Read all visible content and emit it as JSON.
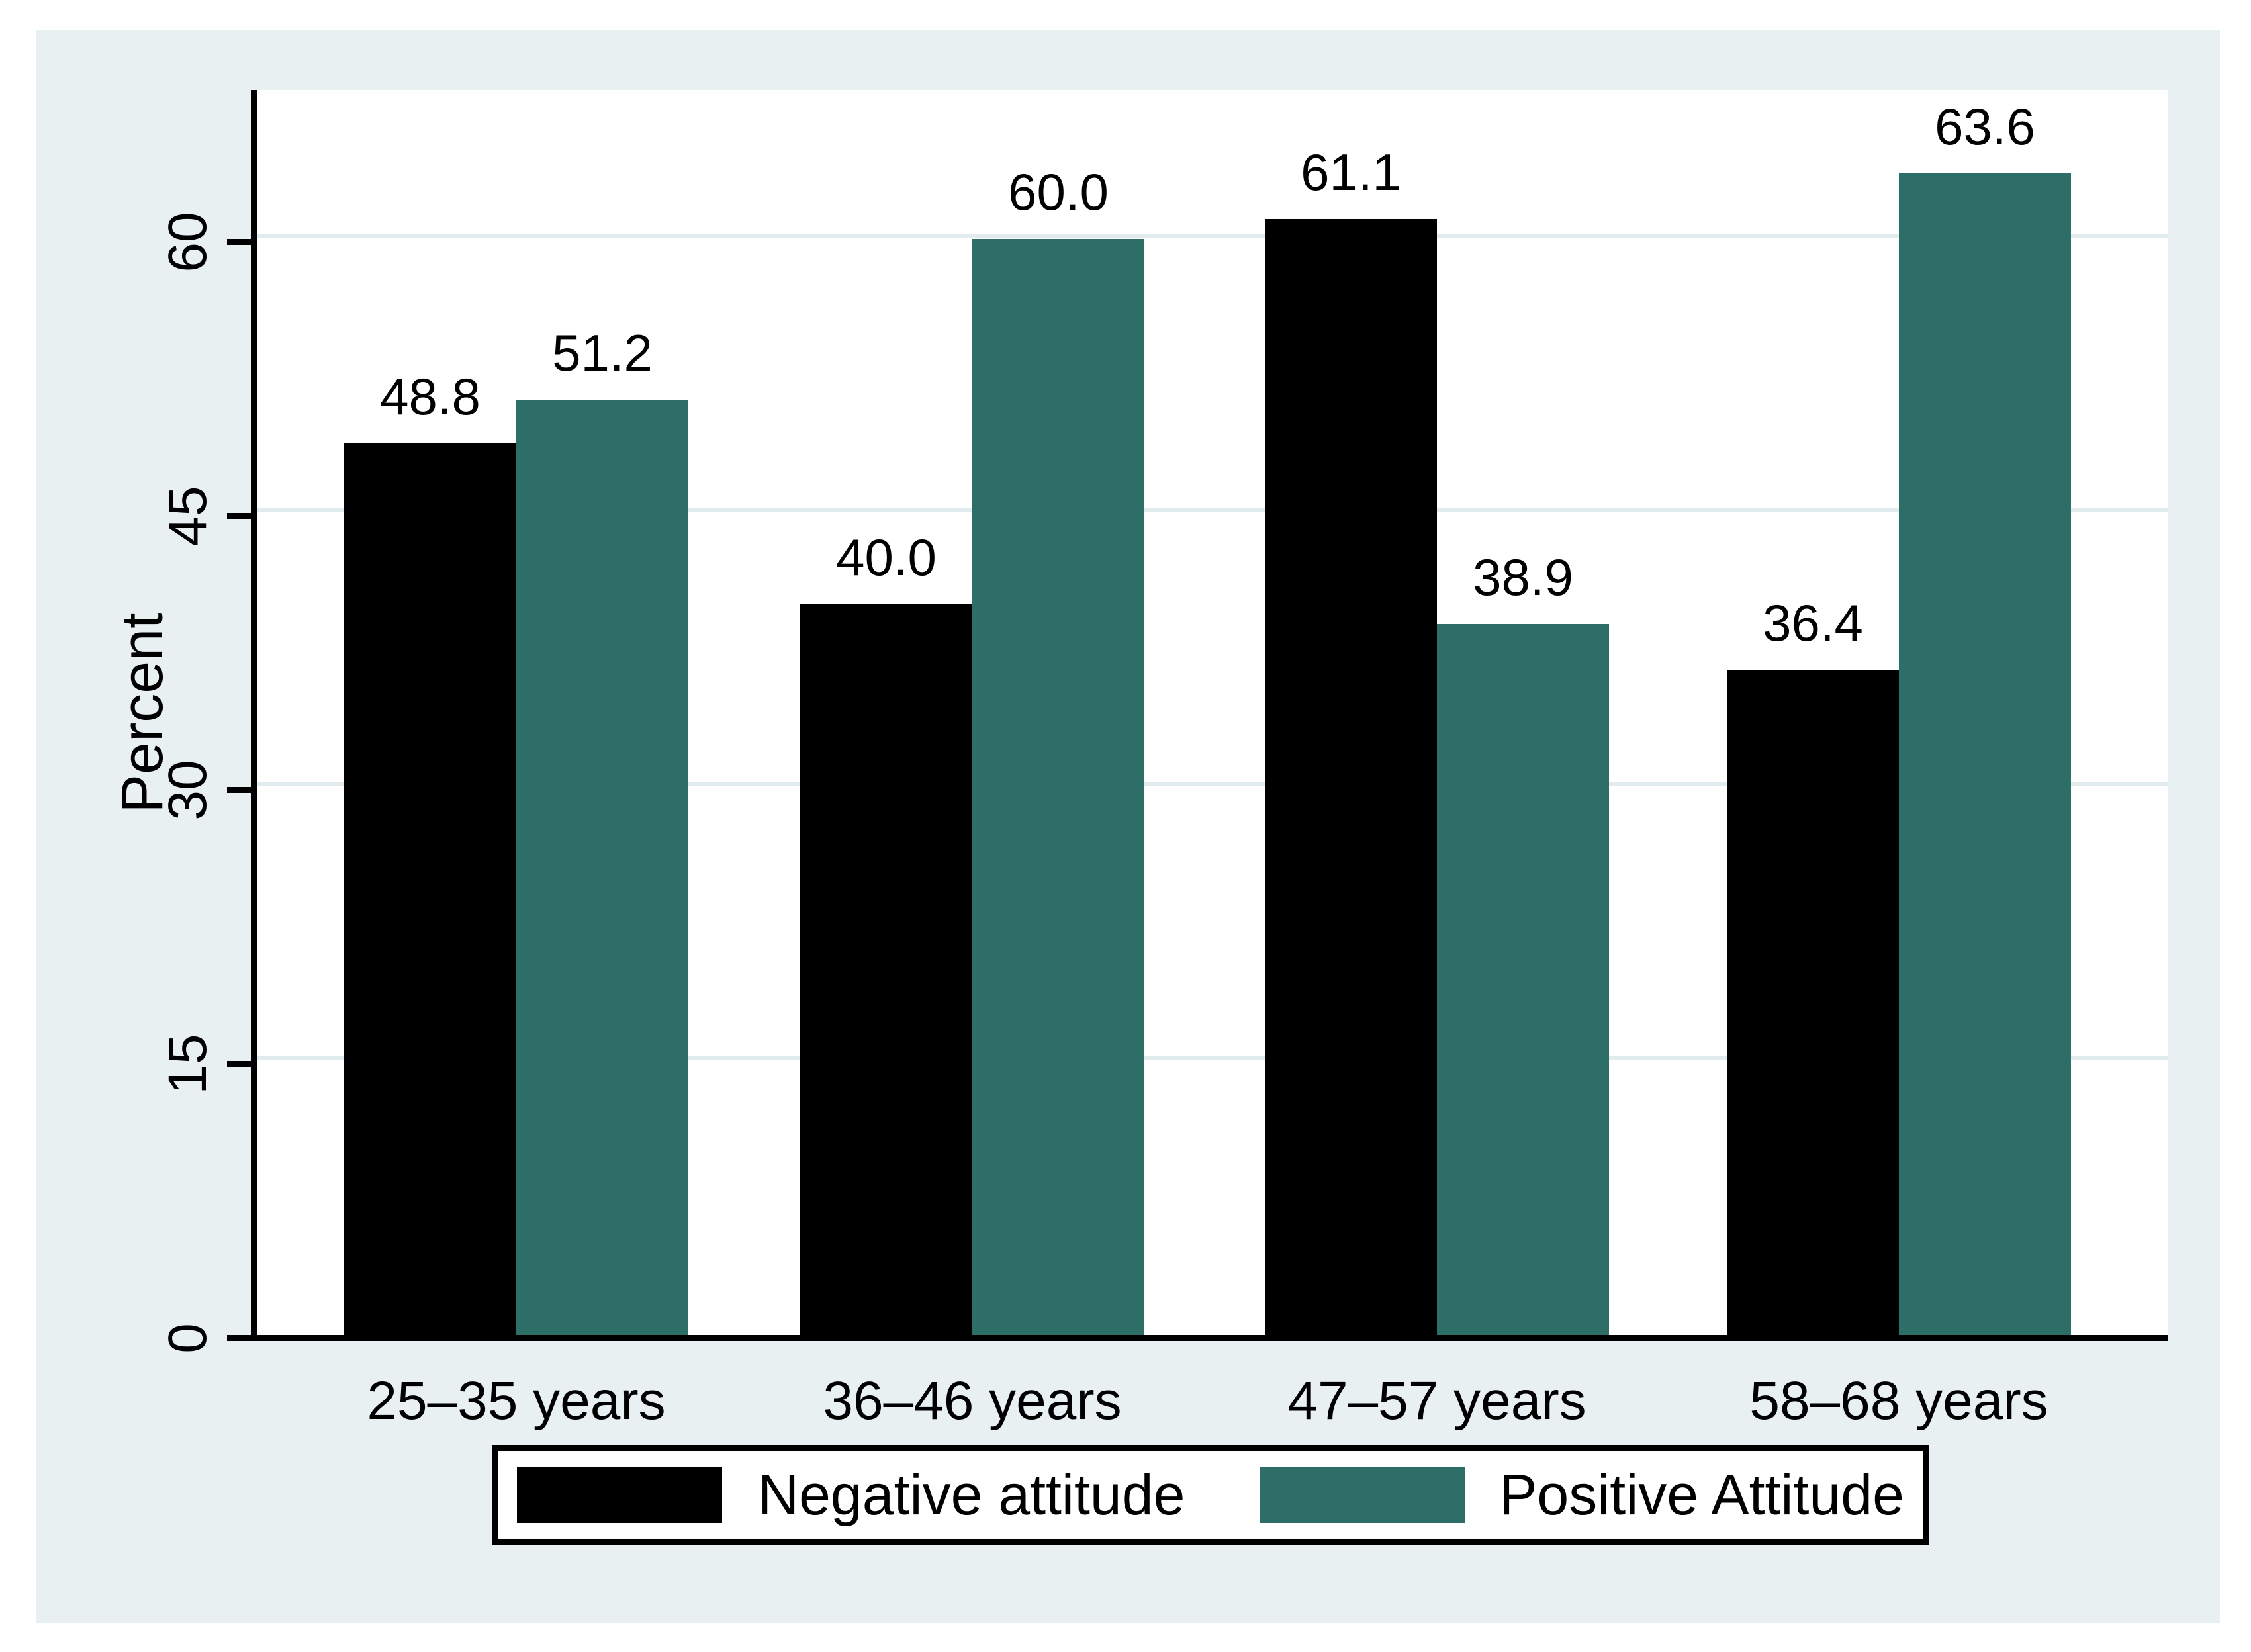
{
  "figure": {
    "background_color": "#e9f0f2",
    "plot_background_color": "#ffffff",
    "grid_color": "#e2ecef",
    "axis_color": "#000000",
    "text_color": "#000000"
  },
  "chart_data": {
    "type": "bar",
    "title": "",
    "xlabel": "",
    "ylabel": "Percent",
    "categories": [
      "25–35 years",
      "36–46 years",
      "47–57 years",
      "58–68 years"
    ],
    "series": [
      {
        "name": "Negative attitude",
        "color": "#000000",
        "values": [
          48.8,
          40.0,
          61.1,
          36.4
        ],
        "value_labels": [
          "48.8",
          "40.0",
          "61.1",
          "36.4"
        ]
      },
      {
        "name": "Positive Attitude",
        "color": "#2d6e66",
        "values": [
          51.2,
          60.0,
          38.9,
          63.6
        ],
        "value_labels": [
          "51.2",
          "60.0",
          "38.9",
          "63.6"
        ]
      }
    ],
    "y_ticks": [
      0,
      15,
      30,
      45,
      60
    ],
    "ylim": [
      0,
      68.2
    ],
    "grid": true,
    "legend_position": "bottom-center"
  }
}
